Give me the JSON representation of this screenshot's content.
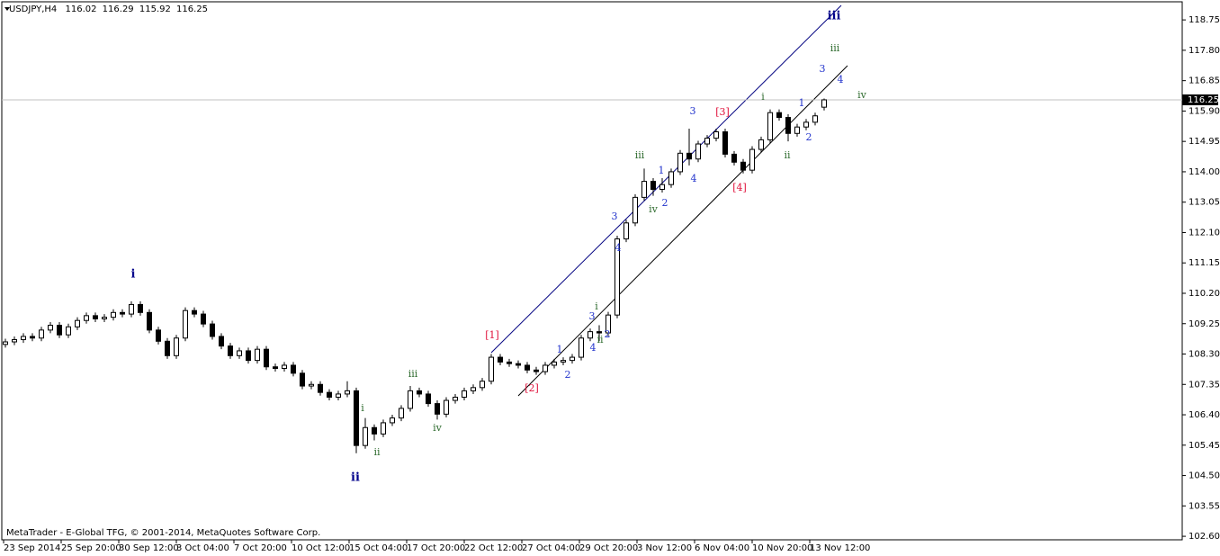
{
  "chart_data": {
    "type": "candlestick",
    "symbol": "USDJPY,H4",
    "copyright": "MetaTrader - E-Global TFG, © 2001-2014, MetaQuotes Software Corp.",
    "ylim": [
      102.49,
      119.26
    ],
    "yticks": [
      118.75,
      {
        "value": 117.8,
        "label": "117.80"
      },
      116.85,
      {
        "value": 115.9,
        "label": "115.90"
      },
      114.95,
      {
        "value": 114.0,
        "label": "114.00"
      },
      113.05,
      {
        "value": 112.1,
        "label": "112.10"
      },
      111.15,
      {
        "value": 110.2,
        "label": "110.20"
      },
      109.25,
      {
        "value": 108.3,
        "label": "108.30"
      },
      107.35,
      {
        "value": 106.4,
        "label": "106.40"
      },
      {
        "value": 105.45,
        "label": "105.45"
      },
      {
        "value": 104.5,
        "label": "104.50"
      },
      103.55,
      {
        "value": 102.6,
        "label": "102.60"
      }
    ],
    "xlabels": [
      "23 Sep 2014",
      "25 Sep 20:00",
      "30 Sep 12:00",
      "3 Oct 04:00",
      "7 Oct 20:00",
      "10 Oct 12:00",
      "15 Oct 04:00",
      "17 Oct 20:00",
      "22 Oct 12:00",
      "27 Oct 04:00",
      "29 Oct 20:00",
      "3 Nov 12:00",
      "6 Nov 04:00",
      "10 Nov 20:00",
      "13 Nov 12:00"
    ],
    "candles": {
      "open": [
        108.6,
        108.68,
        108.75,
        108.85,
        108.8,
        109.05,
        109.2,
        108.9,
        109.15,
        109.35,
        109.5,
        109.4,
        109.45,
        109.6,
        109.55,
        109.85,
        109.6,
        109.05,
        108.7,
        108.25,
        108.8,
        109.66,
        109.55,
        109.24,
        108.85,
        108.55,
        108.25,
        108.4,
        108.1,
        108.45,
        107.9,
        107.85,
        107.95,
        107.7,
        107.3,
        107.35,
        107.1,
        106.95,
        107.05,
        107.15,
        105.44,
        106.0,
        105.8,
        106.15,
        106.3,
        106.6,
        107.15,
        107.05,
        106.75,
        106.42,
        106.85,
        106.95,
        107.15,
        107.25,
        107.45,
        108.2,
        108.05,
        108.0,
        107.95,
        107.8,
        107.75,
        107.95,
        108.05,
        108.1,
        108.2,
        108.8,
        109.0,
        108.96,
        109.52,
        111.9,
        112.4,
        113.2,
        113.7,
        113.45,
        113.6,
        114.0,
        114.58,
        114.4,
        114.87,
        115.05,
        115.25,
        114.55,
        114.3,
        114.05,
        114.7,
        115.0,
        115.85,
        115.7,
        115.2,
        115.4,
        115.55,
        116.02
      ],
      "high": [
        108.78,
        108.85,
        108.95,
        108.95,
        109.15,
        109.3,
        109.3,
        109.25,
        109.45,
        109.6,
        109.6,
        109.55,
        109.7,
        109.7,
        109.95,
        109.95,
        109.7,
        109.15,
        108.8,
        108.9,
        109.76,
        109.76,
        109.65,
        109.34,
        108.95,
        108.65,
        108.5,
        108.5,
        108.55,
        108.55,
        108.0,
        108.05,
        108.05,
        107.8,
        107.45,
        107.45,
        107.2,
        107.15,
        107.45,
        107.25,
        106.3,
        106.1,
        106.25,
        106.4,
        106.7,
        107.3,
        107.25,
        107.15,
        106.85,
        106.95,
        107.05,
        107.25,
        107.35,
        107.55,
        108.3,
        108.3,
        108.15,
        108.1,
        108.05,
        107.9,
        108.05,
        108.15,
        108.2,
        108.3,
        108.9,
        109.1,
        109.2,
        109.62,
        112.0,
        112.5,
        113.3,
        114.1,
        113.8,
        113.8,
        114.1,
        114.68,
        115.35,
        114.97,
        115.15,
        115.35,
        115.35,
        114.65,
        114.4,
        114.8,
        115.1,
        115.95,
        115.95,
        115.8,
        115.5,
        115.65,
        115.85,
        116.29
      ],
      "low": [
        108.5,
        108.58,
        108.65,
        108.7,
        108.7,
        108.95,
        108.8,
        108.8,
        109.05,
        109.25,
        109.3,
        109.3,
        109.35,
        109.45,
        109.45,
        109.5,
        108.95,
        108.6,
        108.15,
        108.15,
        108.7,
        109.45,
        109.14,
        108.75,
        108.45,
        108.15,
        108.15,
        108.0,
        108.0,
        107.8,
        107.75,
        107.75,
        107.6,
        107.2,
        107.2,
        107.0,
        106.85,
        106.85,
        106.95,
        105.2,
        105.34,
        105.6,
        105.7,
        106.05,
        106.2,
        106.5,
        106.95,
        106.65,
        106.25,
        106.32,
        106.75,
        106.85,
        107.05,
        107.15,
        107.35,
        107.95,
        107.9,
        107.85,
        107.7,
        107.65,
        107.65,
        107.85,
        107.95,
        108.0,
        108.1,
        108.7,
        108.7,
        108.86,
        109.42,
        111.8,
        112.3,
        113.1,
        113.25,
        113.35,
        113.5,
        113.9,
        114.2,
        114.3,
        114.77,
        114.95,
        114.45,
        114.2,
        113.95,
        113.95,
        114.6,
        114.9,
        115.6,
        114.95,
        115.1,
        115.3,
        115.45,
        115.92
      ],
      "close": [
        108.68,
        108.75,
        108.85,
        108.8,
        109.05,
        109.2,
        108.9,
        109.15,
        109.35,
        109.5,
        109.4,
        109.45,
        109.6,
        109.55,
        109.85,
        109.6,
        109.05,
        108.7,
        108.25,
        108.8,
        109.66,
        109.55,
        109.24,
        108.85,
        108.55,
        108.25,
        108.4,
        108.1,
        108.45,
        107.9,
        107.85,
        107.95,
        107.7,
        107.3,
        107.35,
        107.1,
        106.95,
        107.05,
        107.15,
        105.44,
        106.0,
        105.8,
        106.15,
        106.3,
        106.6,
        107.15,
        107.05,
        106.75,
        106.42,
        106.85,
        106.95,
        107.15,
        107.25,
        107.45,
        108.2,
        108.05,
        108.0,
        107.95,
        107.8,
        107.75,
        107.95,
        108.05,
        108.1,
        108.2,
        108.8,
        109.0,
        108.96,
        109.52,
        111.9,
        112.4,
        113.2,
        113.7,
        113.45,
        113.6,
        114.0,
        114.58,
        114.4,
        114.87,
        115.05,
        115.25,
        114.55,
        114.3,
        114.05,
        114.7,
        115.0,
        115.85,
        115.7,
        115.2,
        115.4,
        115.55,
        115.75,
        116.25
      ]
    },
    "wave_labels": [
      "i",
      "ii",
      "iii",
      "[1]",
      "[2]",
      "[3]",
      "[4]",
      "i",
      "ii",
      "iii",
      "iv",
      "iii",
      "iv",
      "i",
      "ii",
      "iii",
      "iv",
      "i",
      "ii",
      "1",
      "2",
      "3",
      "4",
      "2",
      "3",
      "4",
      "1",
      "2",
      "3",
      "4",
      "1",
      "2",
      "3",
      "4"
    ]
  }
}
